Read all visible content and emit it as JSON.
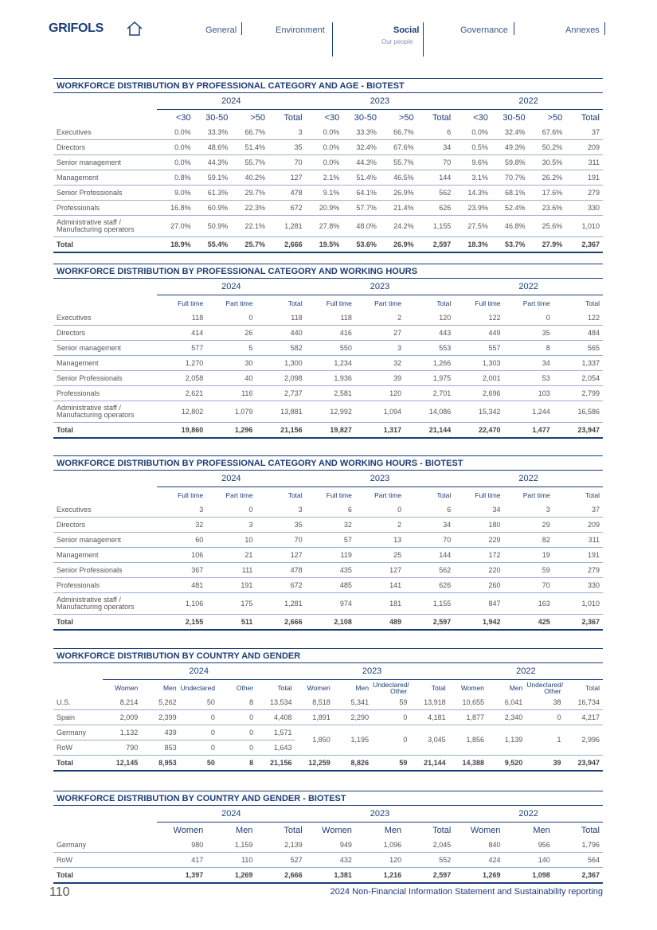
{
  "header": {
    "logo": "GRIFOLS",
    "nav": [
      "General",
      "Environment",
      "Social",
      "Governance",
      "Annexes"
    ],
    "subnav": "Our people"
  },
  "tables": [
    {
      "title": "WORKFORCE DISTRIBUTION BY PROFESSIONAL CATEGORY AND AGE  - BIOTEST",
      "groups": [
        {
          "year": "2024",
          "columns": [
            "<30",
            "30-50",
            ">50",
            "Total"
          ]
        },
        {
          "year": "2023",
          "columns": [
            "<30",
            "30-50",
            ">50",
            "Total"
          ]
        },
        {
          "year": "2022",
          "columns": [
            "<30",
            "30-50",
            ">50",
            "Total"
          ]
        }
      ],
      "rows": [
        {
          "label": "Executives",
          "cells": [
            "0.0%",
            "33.3%",
            "66.7%",
            "3",
            "0.0%",
            "33.3%",
            "66.7%",
            "6",
            "0.0%",
            "32.4%",
            "67.6%",
            "37"
          ]
        },
        {
          "label": "Directors",
          "cells": [
            "0.0%",
            "48.6%",
            "51.4%",
            "35",
            "0.0%",
            "32.4%",
            "67.6%",
            "34",
            "0.5%",
            "49.3%",
            "50.2%",
            "209"
          ]
        },
        {
          "label": "Senior management",
          "cells": [
            "0.0%",
            "44.3%",
            "55.7%",
            "70",
            "0.0%",
            "44.3%",
            "55.7%",
            "70",
            "9.6%",
            "59.8%",
            "30.5%",
            "311"
          ]
        },
        {
          "label": "Management",
          "cells": [
            "0.8%",
            "59.1%",
            "40.2%",
            "127",
            "2.1%",
            "51.4%",
            "46.5%",
            "144",
            "3.1%",
            "70.7%",
            "26.2%",
            "191"
          ]
        },
        {
          "label": "Senior Professionals",
          "cells": [
            "9.0%",
            "61.3%",
            "29.7%",
            "478",
            "9.1%",
            "64.1%",
            "26.9%",
            "562",
            "14.3%",
            "68.1%",
            "17.6%",
            "279"
          ]
        },
        {
          "label": "Professionals",
          "cells": [
            "16.8%",
            "60.9%",
            "22.3%",
            "672",
            "20.9%",
            "57.7%",
            "21.4%",
            "626",
            "23.9%",
            "52.4%",
            "23.6%",
            "330"
          ]
        },
        {
          "label": "Administrative staff / Manufacturing operators",
          "cells": [
            "27.0%",
            "50.9%",
            "22.1%",
            "1,281",
            "27.8%",
            "48.0%",
            "24.2%",
            "1,155",
            "27.5%",
            "46.8%",
            "25.6%",
            "1,010"
          ]
        },
        {
          "label": "Total",
          "cells": [
            "18.9%",
            "55.4%",
            "25.7%",
            "2,666",
            "19.5%",
            "53.6%",
            "26.9%",
            "2,597",
            "18.3%",
            "53.7%",
            "27.9%",
            "2,367"
          ]
        }
      ]
    },
    {
      "title": "WORKFORCE DISTRIBUTION BY PROFESSIONAL CATEGORY AND WORKING HOURS",
      "groups": [
        {
          "year": "2024",
          "columns": [
            "Full time",
            "Part time",
            "Total"
          ]
        },
        {
          "year": "2023",
          "columns": [
            "Full time",
            "Part time",
            "Total"
          ]
        },
        {
          "year": "2022",
          "columns": [
            "Full time",
            "Part time",
            "Total"
          ]
        }
      ],
      "rows": [
        {
          "label": "Executives",
          "cells": [
            "118",
            "0",
            "118",
            "118",
            "2",
            "120",
            "122",
            "0",
            "122"
          ]
        },
        {
          "label": "Directors",
          "cells": [
            "414",
            "26",
            "440",
            "416",
            "27",
            "443",
            "449",
            "35",
            "484"
          ]
        },
        {
          "label": "Senior management",
          "cells": [
            "577",
            "5",
            "582",
            "550",
            "3",
            "553",
            "557",
            "8",
            "565"
          ]
        },
        {
          "label": "Management",
          "cells": [
            "1,270",
            "30",
            "1,300",
            "1,234",
            "32",
            "1,266",
            "1,303",
            "34",
            "1,337"
          ]
        },
        {
          "label": "Senior Professionals",
          "cells": [
            "2,058",
            "40",
            "2,098",
            "1,936",
            "39",
            "1,975",
            "2,001",
            "53",
            "2,054"
          ]
        },
        {
          "label": "Professionals",
          "cells": [
            "2,621",
            "116",
            "2,737",
            "2,581",
            "120",
            "2,701",
            "2,696",
            "103",
            "2,799"
          ]
        },
        {
          "label": "Administrative staff / Manufacturing operators",
          "cells": [
            "12,802",
            "1,079",
            "13,881",
            "12,992",
            "1,094",
            "14,086",
            "15,342",
            "1,244",
            "16,586"
          ]
        },
        {
          "label": "Total",
          "cells": [
            "19,860",
            "1,296",
            "21,156",
            "19,827",
            "1,317",
            "21,144",
            "22,470",
            "1,477",
            "23,947"
          ]
        }
      ]
    },
    {
      "title": "WORKFORCE DISTRIBUTION BY PROFESSIONAL CATEGORY AND WORKING HOURS - BIOTEST",
      "groups": [
        {
          "year": "2024",
          "columns": [
            "Full time",
            "Part time",
            "Total"
          ]
        },
        {
          "year": "2023",
          "columns": [
            "Full time",
            "Part time",
            "Total"
          ]
        },
        {
          "year": "2022",
          "columns": [
            "Full time",
            "Part time",
            "Total"
          ]
        }
      ],
      "rows": [
        {
          "label": "Executives",
          "cells": [
            "3",
            "0",
            "3",
            "6",
            "0",
            "6",
            "34",
            "3",
            "37"
          ]
        },
        {
          "label": "Directors",
          "cells": [
            "32",
            "3",
            "35",
            "32",
            "2",
            "34",
            "180",
            "29",
            "209"
          ]
        },
        {
          "label": "Senior management",
          "cells": [
            "60",
            "10",
            "70",
            "57",
            "13",
            "70",
            "229",
            "82",
            "311"
          ]
        },
        {
          "label": "Management",
          "cells": [
            "106",
            "21",
            "127",
            "119",
            "25",
            "144",
            "172",
            "19",
            "191"
          ]
        },
        {
          "label": "Senior Professionals",
          "cells": [
            "367",
            "111",
            "478",
            "435",
            "127",
            "562",
            "220",
            "59",
            "279"
          ]
        },
        {
          "label": "Professionals",
          "cells": [
            "481",
            "191",
            "672",
            "485",
            "141",
            "626",
            "260",
            "70",
            "330"
          ]
        },
        {
          "label": "Administrative staff / Manufacturing operators",
          "cells": [
            "1,106",
            "175",
            "1,281",
            "974",
            "181",
            "1,155",
            "847",
            "163",
            "1,010"
          ]
        },
        {
          "label": "Total",
          "cells": [
            "2,155",
            "511",
            "2,666",
            "2,108",
            "489",
            "2,597",
            "1,942",
            "425",
            "2,367"
          ]
        }
      ]
    },
    {
      "title": "WORKFORCE DISTRIBUTION BY COUNTRY AND GENDER",
      "groups": [
        {
          "year": "2024",
          "columns": [
            "Women",
            "Men",
            "Undeclared",
            "Other",
            "Total"
          ]
        },
        {
          "year": "2023",
          "columns": [
            "Women",
            "Men",
            "Undeclared/ Other",
            "Total"
          ]
        },
        {
          "year": "2022",
          "columns": [
            "Women",
            "Men",
            "Undeclared/ Other",
            "Total"
          ]
        }
      ],
      "rows": [
        {
          "label": "U.S.",
          "cells": [
            "8,214",
            "5,262",
            "50",
            "8",
            "13,534",
            "8,518",
            "5,341",
            "59",
            "13,918",
            "10,655",
            "6,041",
            "38",
            "16,734"
          ]
        },
        {
          "label": "Spain",
          "cells": [
            "2,009",
            "2,399",
            "0",
            "0",
            "4,408",
            "1,891",
            "2,290",
            "0",
            "4,181",
            "1,877",
            "2,340",
            "0",
            "4,217"
          ]
        },
        {
          "label": "Germany",
          "cells": [
            "1,132",
            "439",
            "0",
            "0",
            "1,571",
            "1,850",
            "1,195",
            "0",
            "3,045",
            "1,856",
            "1,139",
            "1",
            "2,996"
          ]
        },
        {
          "label": "RoW",
          "cells": [
            "790",
            "853",
            "0",
            "0",
            "1,643"
          ]
        },
        {
          "label": "Total",
          "cells": [
            "12,145",
            "8,953",
            "50",
            "8",
            "21,156",
            "12,259",
            "8,826",
            "59",
            "21,144",
            "14,388",
            "9,520",
            "39",
            "23,947"
          ]
        }
      ]
    },
    {
      "title": "WORKFORCE DISTRIBUTION BY COUNTRY AND GENDER - BIOTEST",
      "groups": [
        {
          "year": "2024",
          "columns": [
            "Women",
            "Men",
            "Total"
          ]
        },
        {
          "year": "2023",
          "columns": [
            "Women",
            "Men",
            "Total"
          ]
        },
        {
          "year": "2022",
          "columns": [
            "Women",
            "Men",
            "Total"
          ]
        }
      ],
      "rows": [
        {
          "label": "Germany",
          "cells": [
            "980",
            "1,159",
            "2,139",
            "949",
            "1,096",
            "2,045",
            "840",
            "956",
            "1,796"
          ]
        },
        {
          "label": "RoW",
          "cells": [
            "417",
            "110",
            "527",
            "432",
            "120",
            "552",
            "424",
            "140",
            "564"
          ]
        },
        {
          "label": "Total",
          "cells": [
            "1,397",
            "1,269",
            "2,666",
            "1,381",
            "1,216",
            "2,597",
            "1,269",
            "1,098",
            "2,367"
          ]
        }
      ]
    }
  ],
  "footer": {
    "page": "110",
    "text": "2024 Non-Financial Information Statement and Sustainability reporting"
  }
}
